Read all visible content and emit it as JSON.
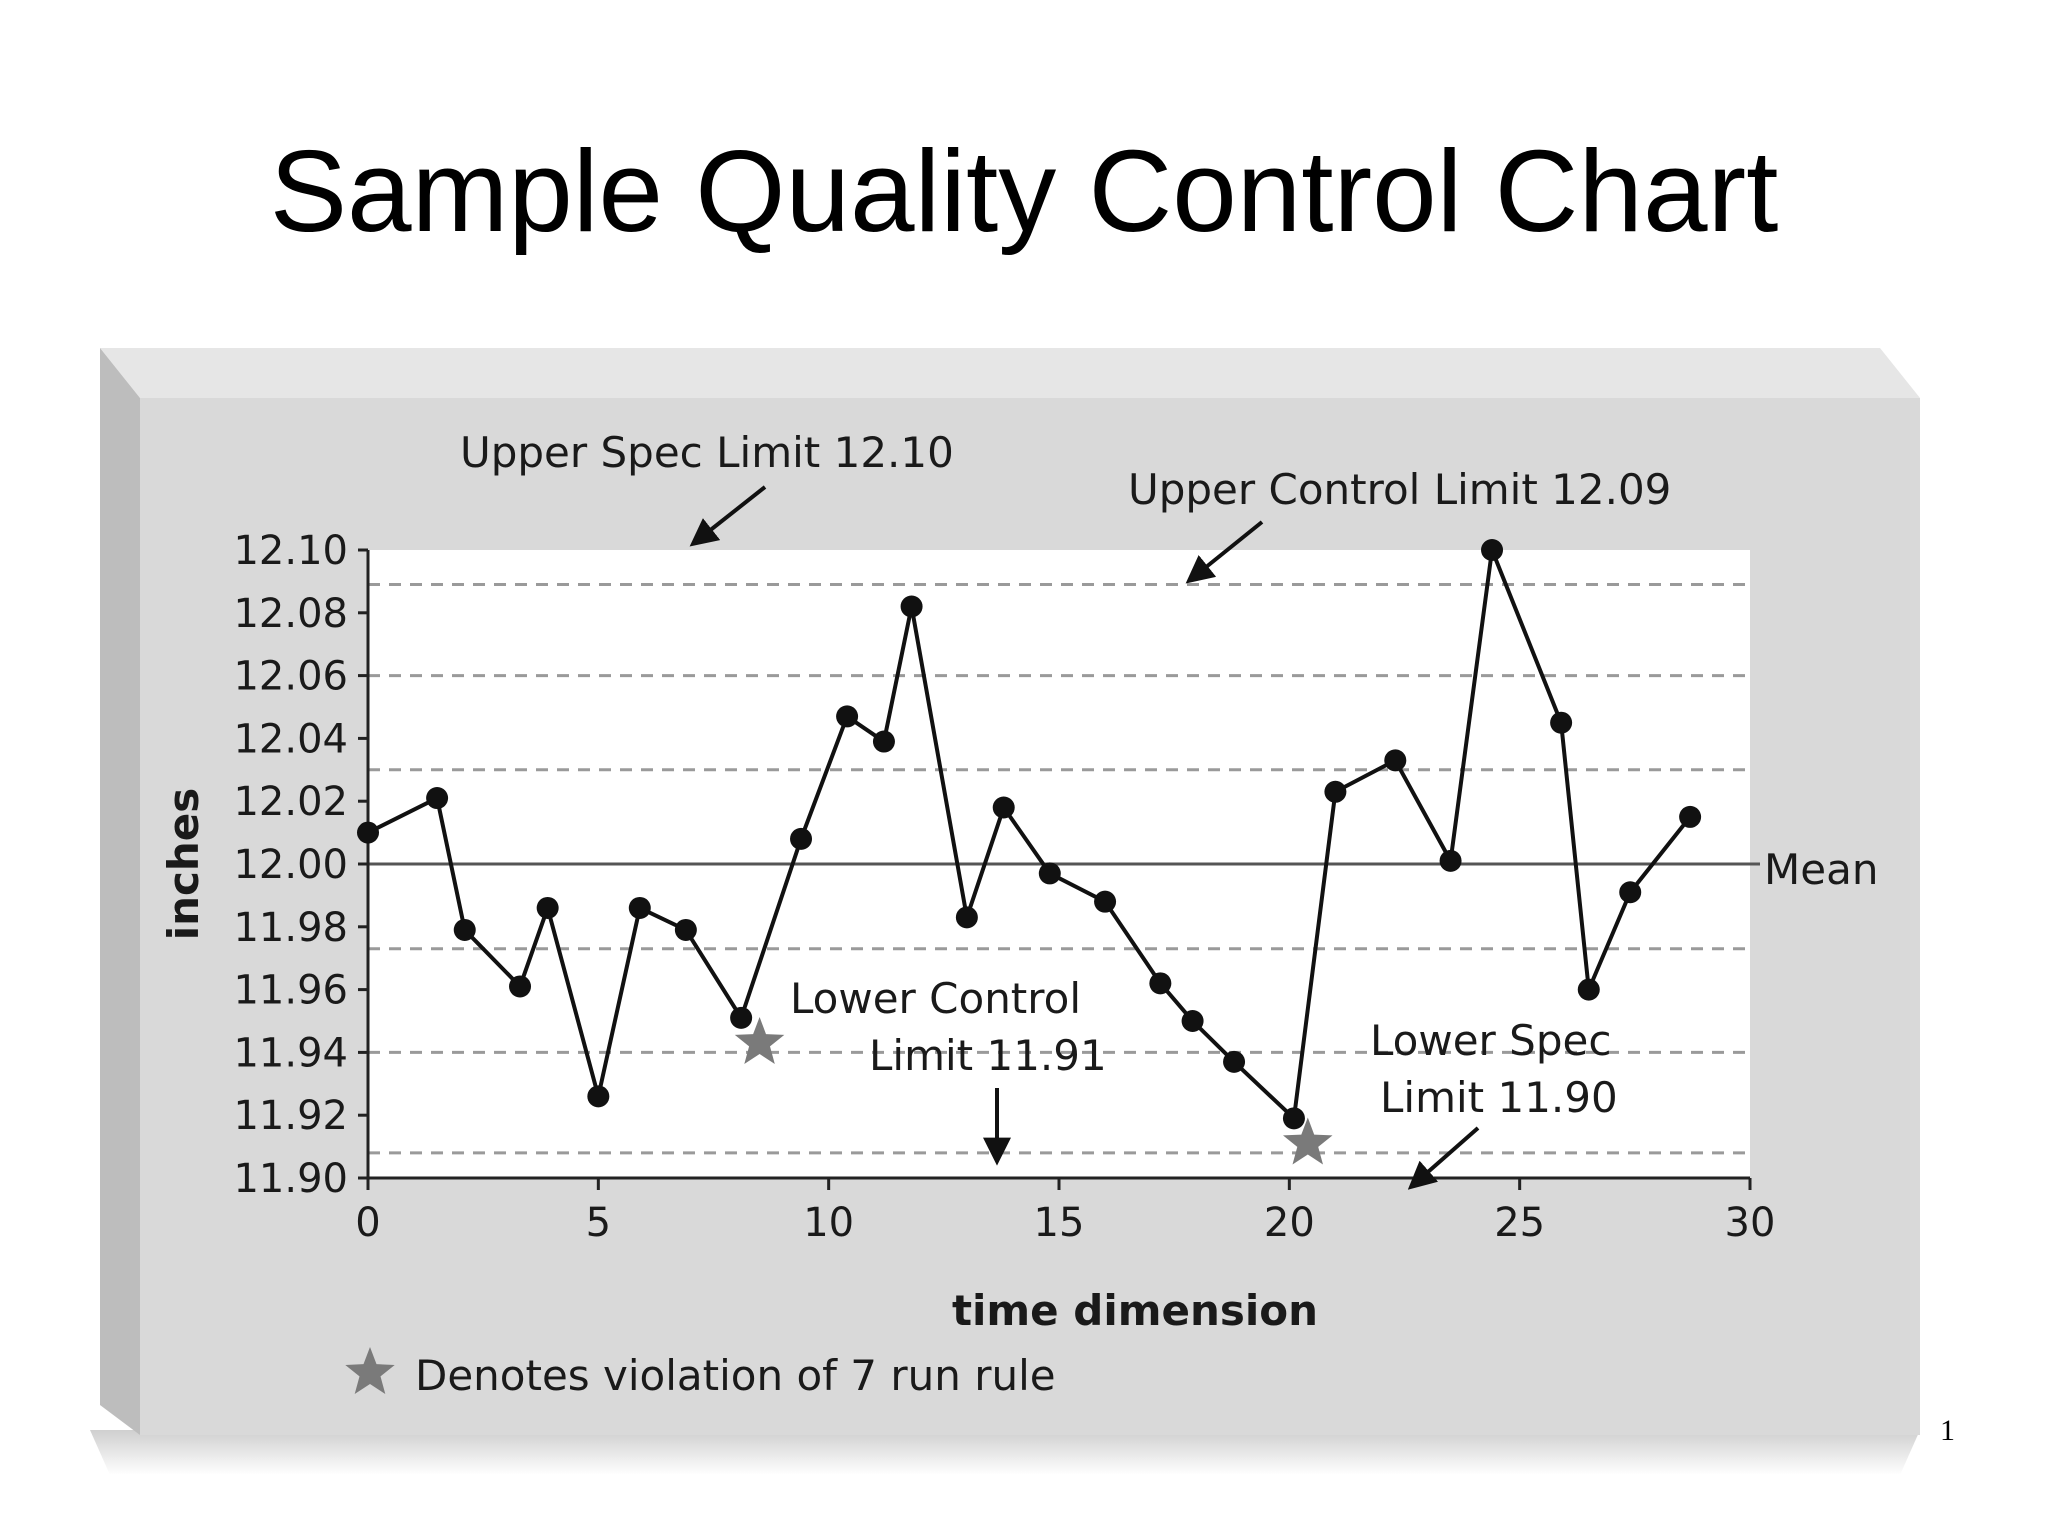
{
  "slide": {
    "title": "Sample Quality Control Chart",
    "page_number": "1"
  },
  "colors": {
    "panel": "#d9d9d9",
    "panel_shadow": "#bdbdbd",
    "plot_bg": "#ffffff",
    "line": "#111111",
    "grid": "#9a9a9a",
    "star": "#7a7a7a"
  },
  "chart_data": {
    "type": "line",
    "xlabel": "time dimension",
    "ylabel": "inches",
    "xlim": [
      0,
      30
    ],
    "ylim": [
      11.9,
      12.1
    ],
    "x_ticks": [
      "0",
      "5",
      "10",
      "15",
      "20",
      "25",
      "30"
    ],
    "y_ticks": [
      "12.10",
      "12.08",
      "12.06",
      "12.04",
      "12.02",
      "12.00",
      "11.98",
      "11.96",
      "11.94",
      "11.92",
      "11.90"
    ],
    "grid": "horizontal dashed",
    "series": [
      {
        "x": [
          0,
          1.5,
          2.1,
          3.3,
          3.9,
          5.0,
          5.9,
          6.9,
          8.1,
          9.4,
          10.4,
          11.2,
          11.8,
          13.0,
          13.8,
          14.8,
          16.0,
          17.2,
          17.9,
          18.8,
          20.1,
          21.0,
          22.3,
          23.5,
          24.4,
          25.9,
          26.5,
          27.4,
          28.7
        ],
        "y": [
          12.01,
          12.021,
          11.979,
          11.961,
          11.986,
          11.926,
          11.986,
          11.979,
          11.951,
          12.008,
          12.047,
          12.039,
          12.082,
          11.983,
          12.018,
          11.997,
          11.988,
          11.962,
          11.95,
          11.937,
          11.919,
          12.023,
          12.033,
          12.001,
          12.1,
          12.045,
          11.96,
          11.991,
          12.015
        ]
      }
    ],
    "reference_lines": [
      {
        "label": "Upper Spec Limit 12.10",
        "value": 12.1
      },
      {
        "label": "Upper Control Limit 12.09",
        "value": 12.089
      },
      {
        "label": "Mean",
        "value": 12.0
      },
      {
        "label": "Lower Control Limit 11.91",
        "value": 11.908
      },
      {
        "label": "Lower Spec Limit 11.90",
        "value": 11.9
      }
    ],
    "other_dashed_levels": [
      12.06,
      12.03,
      11.973,
      11.94
    ],
    "violations": [
      {
        "x": 8.5,
        "y": 11.943
      },
      {
        "x": 20.4,
        "y": 11.911
      }
    ],
    "annotations": {
      "usl": "Upper Spec Limit 12.10",
      "ucl": "Upper Control Limit 12.09",
      "mean": "Mean",
      "lcl_line1": "Lower Control",
      "lcl_line2": "Limit 11.91",
      "lsl_line1": "Lower Spec",
      "lsl_line2": "Limit 11.90"
    },
    "legend": {
      "text": "Denotes violation of 7 run rule",
      "marker": "star",
      "placement": "bottom-left"
    }
  }
}
